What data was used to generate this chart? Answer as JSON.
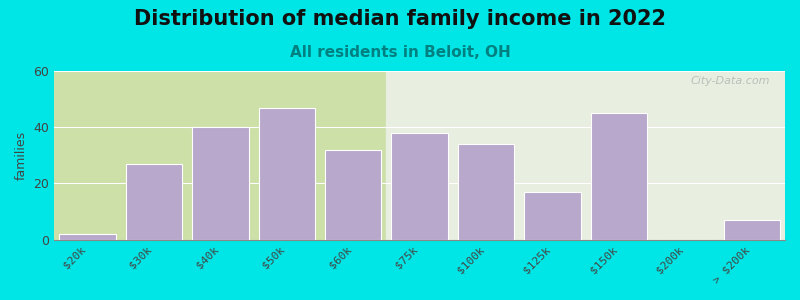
{
  "title": "Distribution of median family income in 2022",
  "subtitle": "All residents in Beloit, OH",
  "xlabel": "",
  "ylabel": "families",
  "categories": [
    "$20k",
    "$30k",
    "$40k",
    "$50k",
    "$60k",
    "$75k",
    "$100k",
    "$125k",
    "$150k",
    "$200k",
    "> $200k"
  ],
  "values": [
    2,
    27,
    40,
    47,
    32,
    38,
    34,
    17,
    45,
    0,
    7
  ],
  "bar_color": "#b8a8cc",
  "background_outer": "#00e5e5",
  "background_inner_left": "#d8e8c0",
  "background_inner_right": "#f0f0f0",
  "ylim": [
    0,
    60
  ],
  "yticks": [
    0,
    20,
    40,
    60
  ],
  "title_fontsize": 15,
  "subtitle_fontsize": 11,
  "subtitle_color": "#008080",
  "watermark": "City-Data.com"
}
